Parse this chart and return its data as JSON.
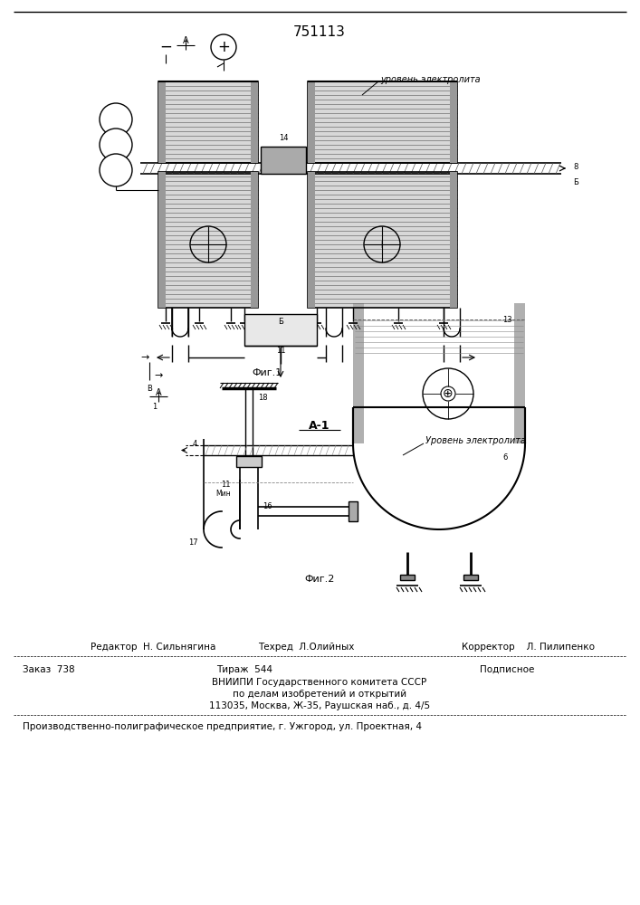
{
  "patent_number": "751113",
  "background_color": "#ffffff",
  "fig1_caption": "Фиг.1",
  "fig2_caption": "Фиг.2",
  "fig2_section_label": "А-1",
  "electrolyte_label1": "уровень электролита",
  "electrolyte_label2": "Уровень электролита",
  "editor_line1": "Редактор  Н. Сильнягина",
  "editor_line2": "Техред  Л.Олийных",
  "editor_line3": "Корректор    Л. Пилипенко",
  "order_label": "Заказ  738",
  "tirazh_label": "Тираж  544",
  "podpisnoe_label": "Подписное",
  "vniip1": "ВНИИПИ Государственного комитета СССР",
  "vniip2": "по делам изобретений и открытий",
  "vniip3": "113035, Москва, Ж-35, Раушская наб., д. 4/5",
  "prod_line": "Производственно-полиграфическое предприятие, г. Ужгород, ул. Проектная, 4"
}
